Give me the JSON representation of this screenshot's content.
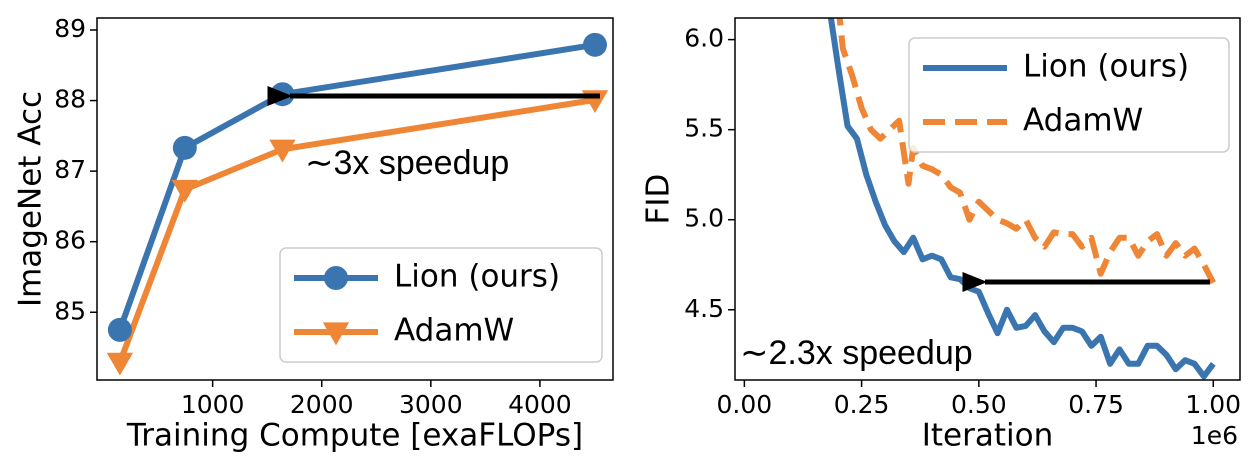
{
  "chart_data": [
    {
      "type": "line",
      "xlabel": "Training Compute [exaFLOPs]",
      "ylabel": "ImageNet Acc",
      "xlim": [
        -60,
        4670
      ],
      "ylim": [
        84.04,
        89.17
      ],
      "xticks": [
        1000,
        2000,
        3000,
        4000
      ],
      "yticks": [
        85,
        86,
        87,
        88,
        89
      ],
      "grid": false,
      "legend": "lower right",
      "series": [
        {
          "name": "Lion (ours)",
          "color": "#3b75af",
          "marker": "circle",
          "linestyle": "solid",
          "x": [
            150,
            745,
            1640,
            4505
          ],
          "values": [
            84.75,
            87.33,
            88.09,
            88.79
          ]
        },
        {
          "name": "AdamW",
          "color": "#ef8636",
          "marker": "triangle-down",
          "linestyle": "solid",
          "x": [
            150,
            745,
            1640,
            4505
          ],
          "values": [
            84.29,
            86.74,
            87.31,
            88.01
          ]
        }
      ],
      "annotations": [
        {
          "text": "∼3x speedup"
        }
      ]
    },
    {
      "type": "line",
      "xlabel": "Iteration",
      "ylabel": "FID",
      "x_offset_label": "1e6",
      "xlim": [
        -0.02,
        1.057
      ],
      "ylim": [
        4.11,
        6.12
      ],
      "xticks": [
        {
          "value": 0,
          "label": "0.00"
        },
        0.25,
        {
          "value": 0.5,
          "label": "0.50"
        },
        0.75,
        {
          "value": 1,
          "label": "1.00"
        }
      ],
      "yticks": [
        4.5,
        {
          "value": 5,
          "label": "5.0"
        },
        5.5,
        {
          "value": 6,
          "label": "6.0"
        }
      ],
      "grid": false,
      "legend": "upper right",
      "series": [
        {
          "name": "Lion (ours)",
          "color": "#3b75af",
          "linestyle": "solid",
          "x": [
            0.18,
            0.2,
            0.22,
            0.24,
            0.26,
            0.28,
            0.3,
            0.32,
            0.34,
            0.36,
            0.38,
            0.4,
            0.42,
            0.44,
            0.46,
            0.48,
            0.5,
            0.52,
            0.54,
            0.56,
            0.58,
            0.6,
            0.62,
            0.64,
            0.66,
            0.68,
            0.7,
            0.72,
            0.74,
            0.76,
            0.78,
            0.8,
            0.82,
            0.84,
            0.86,
            0.88,
            0.9,
            0.92,
            0.94,
            0.96,
            0.98,
            1.0
          ],
          "values": [
            6.2,
            5.85,
            5.52,
            5.45,
            5.25,
            5.1,
            4.97,
            4.88,
            4.82,
            4.9,
            4.78,
            4.8,
            4.78,
            4.68,
            4.67,
            4.62,
            4.6,
            4.48,
            4.37,
            4.5,
            4.4,
            4.41,
            4.47,
            4.38,
            4.32,
            4.4,
            4.4,
            4.38,
            4.3,
            4.35,
            4.2,
            4.28,
            4.2,
            4.2,
            4.3,
            4.3,
            4.25,
            4.17,
            4.22,
            4.2,
            4.13,
            4.2
          ]
        },
        {
          "name": "AdamW",
          "color": "#ef8636",
          "linestyle": "dashed",
          "x": [
            0.2,
            0.21,
            0.23,
            0.25,
            0.27,
            0.29,
            0.31,
            0.33,
            0.35,
            0.36,
            0.38,
            0.4,
            0.42,
            0.44,
            0.46,
            0.48,
            0.5,
            0.52,
            0.54,
            0.56,
            0.58,
            0.6,
            0.62,
            0.64,
            0.66,
            0.68,
            0.7,
            0.72,
            0.74,
            0.76,
            0.78,
            0.8,
            0.82,
            0.84,
            0.86,
            0.88,
            0.9,
            0.92,
            0.94,
            0.96,
            0.98,
            1.0
          ],
          "values": [
            6.2,
            5.95,
            5.8,
            5.62,
            5.5,
            5.45,
            5.5,
            5.55,
            5.2,
            5.4,
            5.3,
            5.28,
            5.25,
            5.18,
            5.15,
            5.0,
            5.1,
            5.05,
            5.0,
            4.98,
            4.95,
            5.0,
            4.9,
            4.85,
            4.93,
            4.92,
            4.92,
            4.85,
            4.9,
            4.7,
            4.82,
            4.9,
            4.9,
            4.8,
            4.88,
            4.92,
            4.8,
            4.87,
            4.8,
            4.84,
            4.75,
            4.65
          ]
        }
      ],
      "annotations": [
        {
          "text": "∼2.3x speedup"
        }
      ]
    }
  ]
}
